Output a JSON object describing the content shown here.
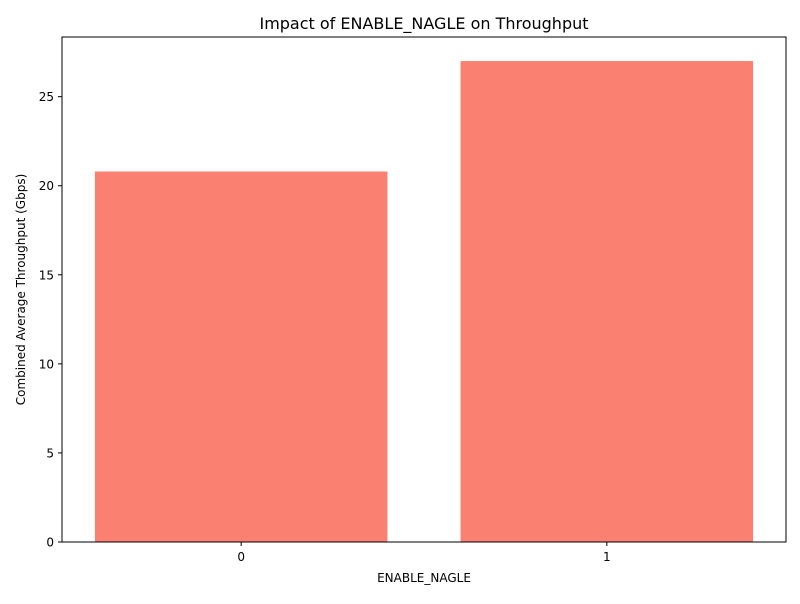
{
  "chart_data": {
    "type": "bar",
    "title": "Impact of ENABLE_NAGLE on Throughput",
    "xlabel": "ENABLE_NAGLE",
    "ylabel": "Combined Average Throughput (Gbps)",
    "categories": [
      "0",
      "1"
    ],
    "values": [
      20.8,
      27.0
    ],
    "ylim": [
      0,
      28.35
    ],
    "yticks": [
      0,
      5,
      10,
      15,
      20,
      25
    ],
    "grid": false,
    "legend": "none",
    "bar_color": "#fa8072"
  }
}
